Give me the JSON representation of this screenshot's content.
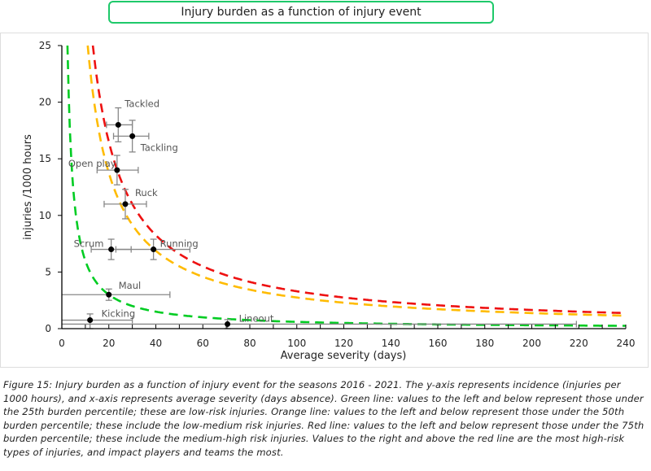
{
  "header": {
    "title": "Injury burden as a function of injury event"
  },
  "chart_data": {
    "type": "scatter",
    "title": "Injury burden as a function of injury event",
    "xlabel": "Average severity (days)",
    "ylabel": "injuries /1000 hours",
    "xlim": [
      0,
      240
    ],
    "ylim": [
      0,
      25
    ],
    "xticks": [
      0,
      20,
      40,
      60,
      80,
      100,
      120,
      140,
      160,
      180,
      200,
      220,
      240
    ],
    "yticks": [
      0,
      5,
      10,
      15,
      20,
      25
    ],
    "grid": false,
    "points": [
      {
        "label": "Tackled",
        "x": 24,
        "y": 18,
        "xerr": [
          19,
          30
        ],
        "yerr": [
          16.5,
          19.5
        ]
      },
      {
        "label": "Tackling",
        "x": 30,
        "y": 17,
        "xerr": [
          22,
          37
        ],
        "yerr": [
          15.6,
          18.4
        ]
      },
      {
        "label": "Open play",
        "x": 23.5,
        "y": 14,
        "xerr": [
          15,
          32.5
        ],
        "yerr": [
          12.7,
          15.3
        ]
      },
      {
        "label": "Ruck",
        "x": 27,
        "y": 11,
        "xerr": [
          18,
          36
        ],
        "yerr": [
          9.7,
          12.3
        ]
      },
      {
        "label": "Scrum",
        "x": 21,
        "y": 7,
        "xerr": [
          12.5,
          29.5
        ],
        "yerr": [
          6.1,
          7.9
        ]
      },
      {
        "label": "Running",
        "x": 39,
        "y": 7,
        "xerr": [
          23,
          54.5
        ],
        "yerr": [
          6.1,
          7.9
        ]
      },
      {
        "label": "Maul",
        "x": 20,
        "y": 3,
        "xerr": [
          0,
          46
        ],
        "yerr": [
          2.5,
          3.5
        ]
      },
      {
        "label": "Kicking",
        "x": 12,
        "y": 0.75,
        "xerr": [
          0,
          30
        ],
        "yerr": [
          0,
          1.3
        ]
      },
      {
        "label": "Lineout",
        "x": 70.5,
        "y": 0.4,
        "xerr": [
          0,
          219
        ],
        "yerr": [
          0,
          0.8
        ]
      }
    ],
    "curves": [
      {
        "name": "25th burden percentile",
        "color": "#00cc22",
        "k": 60,
        "form": "y = k / x"
      },
      {
        "name": "50th burden percentile",
        "color": "#ffbb00",
        "k": 275,
        "form": "y = k / x"
      },
      {
        "name": "75th burden percentile",
        "color": "#ee1111",
        "k": 330,
        "form": "y = k / x"
      }
    ]
  },
  "caption": "Figure 15: Injury burden as a function of injury event for the seasons 2016 - 2021. The y-axis represents incidence (injuries per 1000 hours), and x-axis represents average severity (days absence). Green line: values to the left and below represent those under the 25th burden percentile; these are low-risk injuries. Orange line: values to the left and below represent those under the 50th burden percentile; these include the low-medium risk injuries. Red line: values to the left and below represent those under the 75th burden percentile; these include the medium-high risk injuries. Values to the right and above the red line are the most high-risk types of injuries, and impact players and teams the most."
}
